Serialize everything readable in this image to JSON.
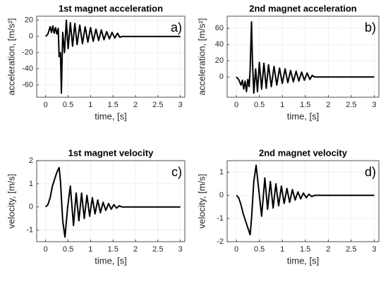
{
  "chart_data": [
    {
      "type": "line",
      "title": "1st magnet acceleration",
      "panel_label": "a)",
      "xlabel": "time, [s]",
      "ylabel": "acceleration, [m/s²]",
      "xlim": [
        -0.2,
        3.1
      ],
      "ylim": [
        -75,
        25
      ],
      "xticks": [
        0,
        0.5,
        1,
        1.5,
        2,
        2.5,
        3
      ],
      "yticks": [
        -60,
        -40,
        -20,
        0,
        20
      ],
      "grid": true,
      "color": "#000000",
      "x": [
        0,
        0.05,
        0.1,
        0.13,
        0.16,
        0.19,
        0.22,
        0.25,
        0.28,
        0.3,
        0.33,
        0.35,
        0.38,
        0.42,
        0.46,
        0.5,
        0.55,
        0.6,
        0.65,
        0.7,
        0.76,
        0.82,
        0.88,
        0.94,
        1.0,
        1.06,
        1.12,
        1.18,
        1.24,
        1.3,
        1.36,
        1.42,
        1.48,
        1.54,
        1.6,
        1.65,
        1.7,
        3
      ],
      "values": [
        0,
        3,
        12,
        5,
        13,
        4,
        11,
        3,
        10,
        -25,
        -20,
        -70,
        5,
        -20,
        20,
        -15,
        17,
        -12,
        16,
        -10,
        14,
        -9,
        12,
        -7,
        11,
        -6,
        9,
        -5,
        8,
        -4,
        6,
        -3,
        5,
        -2,
        4,
        -1,
        0,
        0
      ]
    },
    {
      "type": "line",
      "title": "2nd magnet acceleration",
      "panel_label": "b)",
      "xlabel": "time, [s]",
      "ylabel": "acceleration, [m/s²]",
      "xlim": [
        -0.2,
        3.1
      ],
      "ylim": [
        -25,
        75
      ],
      "xticks": [
        0,
        0.5,
        1,
        1.5,
        2,
        2.5,
        3
      ],
      "yticks": [
        0,
        20,
        40,
        60
      ],
      "grid": true,
      "color": "#000000",
      "x": [
        0,
        0.05,
        0.1,
        0.13,
        0.16,
        0.19,
        0.22,
        0.25,
        0.28,
        0.3,
        0.33,
        0.35,
        0.38,
        0.42,
        0.46,
        0.5,
        0.55,
        0.6,
        0.65,
        0.7,
        0.76,
        0.82,
        0.88,
        0.94,
        1.0,
        1.06,
        1.12,
        1.18,
        1.24,
        1.3,
        1.36,
        1.42,
        1.48,
        1.54,
        1.6,
        1.65,
        1.7,
        3
      ],
      "values": [
        0,
        -3,
        -10,
        -4,
        -15,
        -5,
        -18,
        -3,
        -12,
        10,
        68,
        20,
        -20,
        10,
        -18,
        18,
        -15,
        17,
        -14,
        15,
        -12,
        13,
        -10,
        11,
        -8,
        10,
        -7,
        8,
        -6,
        7,
        -5,
        6,
        -4,
        5,
        -3,
        2,
        0,
        0
      ]
    },
    {
      "type": "line",
      "title": "1st magnet velocity",
      "panel_label": "c)",
      "xlabel": "time, [s]",
      "ylabel": "velocity, [m/s]",
      "xlim": [
        -0.2,
        3.1
      ],
      "ylim": [
        -1.5,
        2
      ],
      "xticks": [
        0,
        0.5,
        1,
        1.5,
        2,
        2.5,
        3
      ],
      "yticks": [
        -1,
        0,
        1,
        2
      ],
      "grid": true,
      "color": "#000000",
      "x": [
        0,
        0.05,
        0.1,
        0.15,
        0.2,
        0.25,
        0.3,
        0.33,
        0.38,
        0.43,
        0.49,
        0.55,
        0.62,
        0.68,
        0.74,
        0.8,
        0.86,
        0.92,
        0.98,
        1.04,
        1.1,
        1.16,
        1.22,
        1.28,
        1.34,
        1.4,
        1.46,
        1.52,
        1.58,
        1.64,
        1.7,
        3
      ],
      "values": [
        0,
        0.1,
        0.4,
        0.9,
        1.2,
        1.5,
        1.7,
        1.1,
        -0.6,
        -1.3,
        0,
        0.9,
        -0.8,
        0.6,
        -0.6,
        0.6,
        -0.5,
        0.5,
        -0.4,
        0.4,
        -0.3,
        0.3,
        -0.25,
        0.2,
        -0.15,
        0.15,
        -0.1,
        0.1,
        -0.05,
        0.05,
        0,
        0
      ]
    },
    {
      "type": "line",
      "title": "2nd magnet velocity",
      "panel_label": "d)",
      "xlabel": "time, [s]",
      "ylabel": "velocity, [m/s]",
      "xlim": [
        -0.2,
        3.1
      ],
      "ylim": [
        -2,
        1.5
      ],
      "xticks": [
        0,
        0.5,
        1,
        1.5,
        2,
        2.5,
        3
      ],
      "yticks": [
        -2,
        -1,
        0,
        1
      ],
      "grid": true,
      "color": "#000000",
      "x": [
        0,
        0.05,
        0.1,
        0.15,
        0.2,
        0.25,
        0.3,
        0.33,
        0.38,
        0.43,
        0.49,
        0.55,
        0.62,
        0.68,
        0.74,
        0.8,
        0.86,
        0.92,
        0.98,
        1.04,
        1.1,
        1.16,
        1.22,
        1.28,
        1.34,
        1.4,
        1.46,
        1.52,
        1.58,
        1.64,
        1.7,
        3
      ],
      "values": [
        0,
        -0.1,
        -0.4,
        -0.8,
        -1.1,
        -1.4,
        -1.7,
        -1.0,
        0.6,
        1.3,
        0.2,
        -0.9,
        0.75,
        -0.6,
        0.6,
        -0.55,
        0.5,
        -0.45,
        0.4,
        -0.35,
        0.3,
        -0.3,
        0.25,
        -0.2,
        0.15,
        -0.15,
        0.1,
        -0.1,
        0.05,
        -0.05,
        0,
        0
      ]
    }
  ]
}
